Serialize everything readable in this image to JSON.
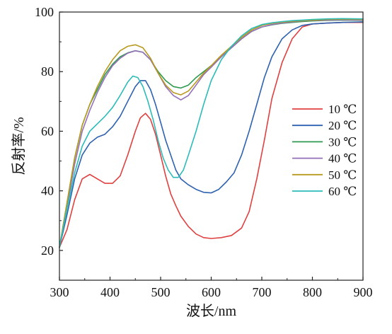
{
  "chart_data": {
    "type": "line",
    "title": "",
    "xlabel": "波长/nm",
    "ylabel": "反射率/%",
    "xlim": [
      300,
      900
    ],
    "ylim": [
      10,
      100
    ],
    "xticks": [
      300,
      400,
      500,
      600,
      700,
      800,
      900
    ],
    "yticks": [
      20,
      40,
      60,
      80,
      100
    ],
    "grid": false,
    "legend_position": "right",
    "series": [
      {
        "name": "10 ℃",
        "color": "#e04040",
        "x": [
          300,
          315,
          330,
          345,
          360,
          375,
          390,
          405,
          420,
          435,
          450,
          460,
          470,
          480,
          490,
          500,
          510,
          520,
          530,
          540,
          555,
          570,
          585,
          600,
          620,
          640,
          660,
          675,
          690,
          705,
          720,
          740,
          760,
          780,
          800,
          830,
          860,
          900
        ],
        "y": [
          21,
          27,
          37,
          44,
          45.5,
          44,
          42.5,
          42.5,
          45,
          52,
          60,
          64.5,
          66,
          64,
          59,
          52,
          45,
          39,
          35,
          31.5,
          28,
          25.5,
          24.3,
          24,
          24.3,
          25,
          27.5,
          33,
          44,
          57,
          71,
          83,
          91,
          95,
          96,
          96.3,
          96.5,
          96.5
        ]
      },
      {
        "name": "20 ℃",
        "color": "#2e62b0",
        "x": [
          300,
          315,
          330,
          345,
          360,
          375,
          390,
          405,
          420,
          435,
          450,
          460,
          470,
          480,
          490,
          500,
          510,
          520,
          530,
          540,
          555,
          570,
          585,
          600,
          615,
          630,
          645,
          660,
          675,
          690,
          705,
          720,
          740,
          760,
          780,
          800,
          830,
          860,
          900
        ],
        "y": [
          21,
          32,
          44,
          52,
          56,
          58,
          59,
          61.5,
          65,
          70,
          75,
          77,
          77,
          74,
          69,
          63,
          57,
          52,
          47,
          44,
          42,
          40.5,
          39.5,
          39.3,
          40.5,
          43,
          46,
          52,
          60,
          69,
          78,
          85,
          91,
          94,
          95.5,
          96,
          96.3,
          96.5,
          96.7
        ]
      },
      {
        "name": "30 ℃",
        "color": "#2e9a50",
        "x": [
          300,
          315,
          330,
          345,
          360,
          375,
          390,
          405,
          420,
          435,
          450,
          465,
          480,
          495,
          510,
          525,
          540,
          555,
          570,
          585,
          600,
          620,
          640,
          660,
          680,
          700,
          720,
          740,
          760,
          780,
          800,
          830,
          860,
          900
        ],
        "y": [
          21,
          36,
          51,
          62,
          69,
          74,
          79,
          82.5,
          85,
          86.3,
          87,
          86.5,
          84,
          80,
          77,
          75,
          74.5,
          75.5,
          78,
          80,
          82,
          85,
          88,
          91,
          93.5,
          95,
          95.7,
          96.2,
          96.5,
          96.8,
          97,
          97.2,
          97.3,
          97.2
        ]
      },
      {
        "name": "40 ℃",
        "color": "#9470b8",
        "x": [
          300,
          315,
          330,
          345,
          360,
          375,
          390,
          405,
          420,
          435,
          450,
          465,
          480,
          495,
          510,
          525,
          540,
          555,
          570,
          585,
          600,
          620,
          640,
          660,
          680,
          700,
          720,
          740,
          760,
          780,
          800,
          830,
          860,
          900
        ],
        "y": [
          21,
          35,
          49,
          60,
          67,
          73,
          78,
          82,
          84.5,
          86.2,
          87,
          86.5,
          84,
          79.5,
          75,
          72,
          70.5,
          72,
          75.5,
          79,
          81.5,
          85,
          88,
          91,
          93.5,
          95,
          95.8,
          96.3,
          96.7,
          97,
          97.2,
          97.3,
          97.4,
          97.3
        ]
      },
      {
        "name": "50 ℃",
        "color": "#b89a1e",
        "x": [
          300,
          315,
          330,
          345,
          360,
          375,
          390,
          405,
          420,
          435,
          450,
          465,
          480,
          495,
          510,
          525,
          540,
          555,
          570,
          585,
          600,
          620,
          640,
          660,
          680,
          700,
          720,
          740,
          760,
          780,
          800,
          830,
          860,
          900
        ],
        "y": [
          21,
          36,
          51,
          62,
          69,
          75,
          80,
          84,
          87,
          88.5,
          89,
          88,
          84.5,
          79.5,
          75.5,
          73,
          72.2,
          73.5,
          76.5,
          79.5,
          82,
          85.5,
          88.5,
          91.5,
          94,
          95.5,
          96.2,
          96.6,
          96.9,
          97.1,
          97.3,
          97.5,
          97.6,
          97.5
        ]
      },
      {
        "name": "60 ℃",
        "color": "#2cbcb8",
        "x": [
          300,
          315,
          330,
          345,
          360,
          375,
          390,
          405,
          420,
          435,
          445,
          455,
          465,
          475,
          485,
          495,
          505,
          515,
          525,
          535,
          545,
          555,
          570,
          585,
          600,
          620,
          640,
          660,
          680,
          700,
          720,
          740,
          760,
          780,
          800,
          830,
          860,
          900
        ],
        "y": [
          21,
          34,
          46,
          55,
          60,
          62.5,
          65,
          68,
          72,
          76.5,
          78.5,
          78,
          75,
          70,
          64,
          57,
          51,
          47,
          44.5,
          44.5,
          47,
          52,
          60,
          69,
          77,
          84,
          88.5,
          92,
          94.5,
          95.8,
          96.4,
          96.8,
          97.1,
          97.3,
          97.5,
          97.7,
          97.8,
          97.7
        ]
      }
    ]
  }
}
